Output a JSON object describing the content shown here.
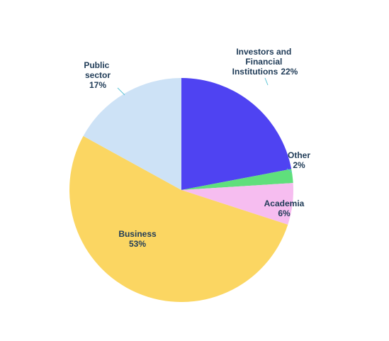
{
  "chart_data": {
    "type": "pie",
    "categories": [
      "Investors and Financial Institutions",
      "Other",
      "Academia",
      "Business",
      "Public sector"
    ],
    "values": [
      22,
      2,
      6,
      53,
      17
    ],
    "value_labels": [
      "22%",
      "2%",
      "6%",
      "53%",
      "17%"
    ],
    "colors": [
      "#4f43f2",
      "#5fdf7c",
      "#f6bdf0",
      "#fbd662",
      "#cde2f6"
    ]
  }
}
